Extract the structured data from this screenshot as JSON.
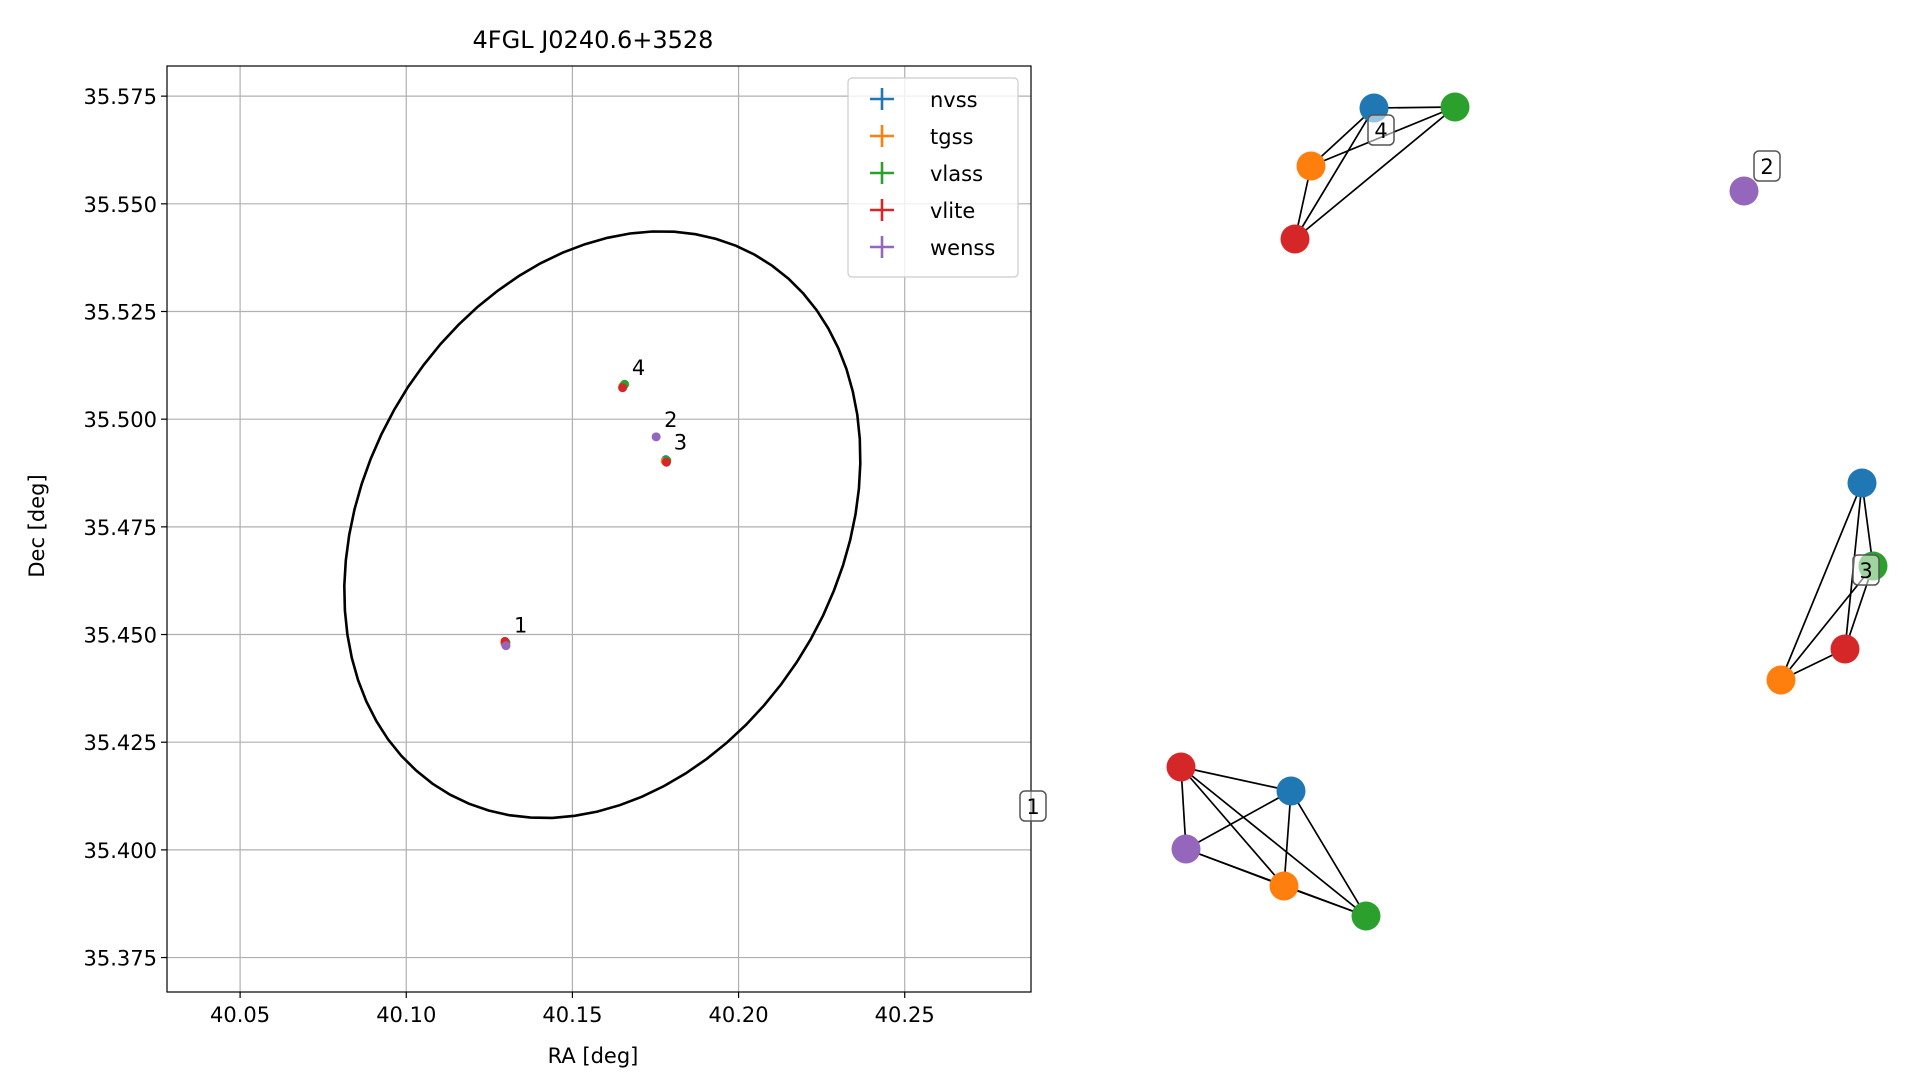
{
  "chart_data": [
    {
      "type": "scatter",
      "title": "4FGL J0240.6+3528",
      "xlabel": "RA [deg]",
      "ylabel": "Dec [deg]",
      "xlim": [
        40.028,
        40.288
      ],
      "ylim": [
        35.367,
        35.582
      ],
      "xticks": [
        40.05,
        40.1,
        40.15,
        40.2,
        40.25
      ],
      "xtick_labels": [
        "40.05",
        "40.10",
        "40.15",
        "40.20",
        "40.25"
      ],
      "yticks": [
        35.375,
        35.4,
        35.425,
        35.45,
        35.475,
        35.5,
        35.525,
        35.55,
        35.575
      ],
      "ytick_labels": [
        "35.375",
        "35.400",
        "35.425",
        "35.450",
        "35.475",
        "35.500",
        "35.525",
        "35.550",
        "35.575"
      ],
      "grid": true,
      "legend_position": "top-right",
      "colors": {
        "nvss": "#1f77b4",
        "tgss": "#ff7f0e",
        "vlass": "#2ca02c",
        "vlite": "#d62728",
        "wenss": "#9467bd"
      },
      "series": [
        {
          "name": "nvss",
          "points": [
            [
              40.1298,
              35.4482
            ],
            [
              40.1655,
              35.5079
            ],
            [
              40.1781,
              35.4906
            ]
          ]
        },
        {
          "name": "tgss",
          "points": [
            [
              40.1297,
              35.4479
            ],
            [
              40.1652,
              35.5077
            ],
            [
              40.1779,
              35.4903
            ]
          ]
        },
        {
          "name": "vlass",
          "points": [
            [
              40.13,
              35.4481
            ],
            [
              40.1657,
              35.5081
            ],
            [
              40.1784,
              35.4904
            ]
          ]
        },
        {
          "name": "vlite",
          "points": [
            [
              40.1297,
              35.4484
            ],
            [
              40.1651,
              35.5073
            ],
            [
              40.1783,
              35.49
            ]
          ]
        },
        {
          "name": "wenss",
          "points": [
            [
              40.13,
              35.4474
            ],
            [
              40.1752,
              35.4959
            ]
          ]
        }
      ],
      "group_labels": [
        {
          "label": "1",
          "ra": 40.13,
          "dec": 35.4482
        },
        {
          "label": "2",
          "ra": 40.1752,
          "dec": 35.4959
        },
        {
          "label": "3",
          "ra": 40.1781,
          "dec": 35.4906
        },
        {
          "label": "4",
          "ra": 40.1655,
          "dec": 35.5079
        }
      ],
      "ellipse": {
        "center": [
          40.159,
          35.4755
        ],
        "semi_axis_ra": 0.082,
        "semi_axis_dec": 0.0628,
        "rotation_deg": 30
      }
    },
    {
      "type": "network",
      "groups": [
        {
          "label": "1",
          "members": [
            "nvss",
            "tgss",
            "vlass",
            "vlite",
            "wenss"
          ]
        },
        {
          "label": "2",
          "members": [
            "wenss"
          ]
        },
        {
          "label": "3",
          "members": [
            "nvss",
            "tgss",
            "vlass",
            "vlite"
          ]
        },
        {
          "label": "4",
          "members": [
            "nvss",
            "tgss",
            "vlass",
            "vlite"
          ]
        }
      ]
    }
  ]
}
